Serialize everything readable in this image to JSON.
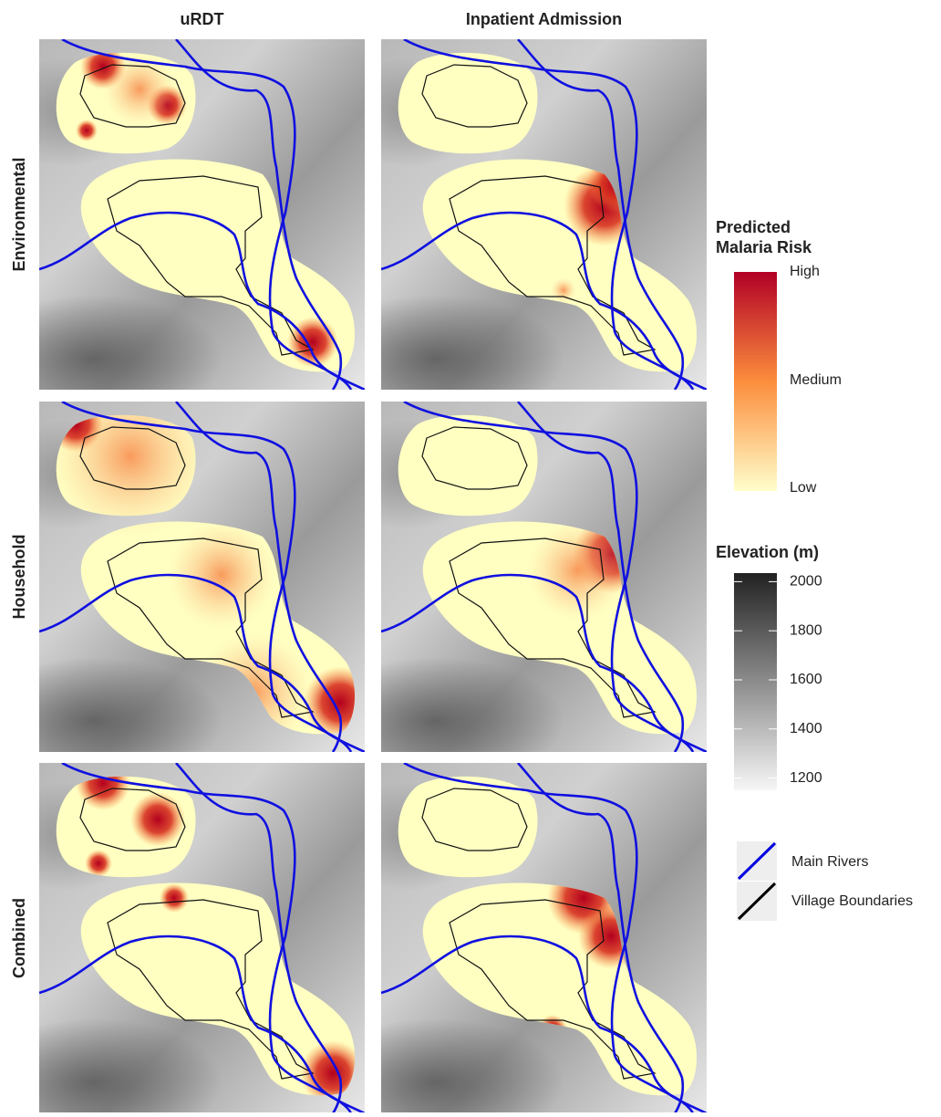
{
  "columns": [
    "uRDT",
    "Inpatient Admission"
  ],
  "rows": [
    "Environmental",
    "Household",
    "Combined"
  ],
  "risk_legend": {
    "title": [
      "Predicted",
      "Malaria Risk"
    ],
    "labels": [
      "High",
      "Medium",
      "Low"
    ]
  },
  "elevation_legend": {
    "title": "Elevation (m)",
    "ticks": [
      1200,
      1400,
      1600,
      1800,
      2000
    ],
    "lim": [
      1150,
      2035
    ]
  },
  "line_legend": [
    "Main Rivers",
    "Village Boundaries"
  ]
}
